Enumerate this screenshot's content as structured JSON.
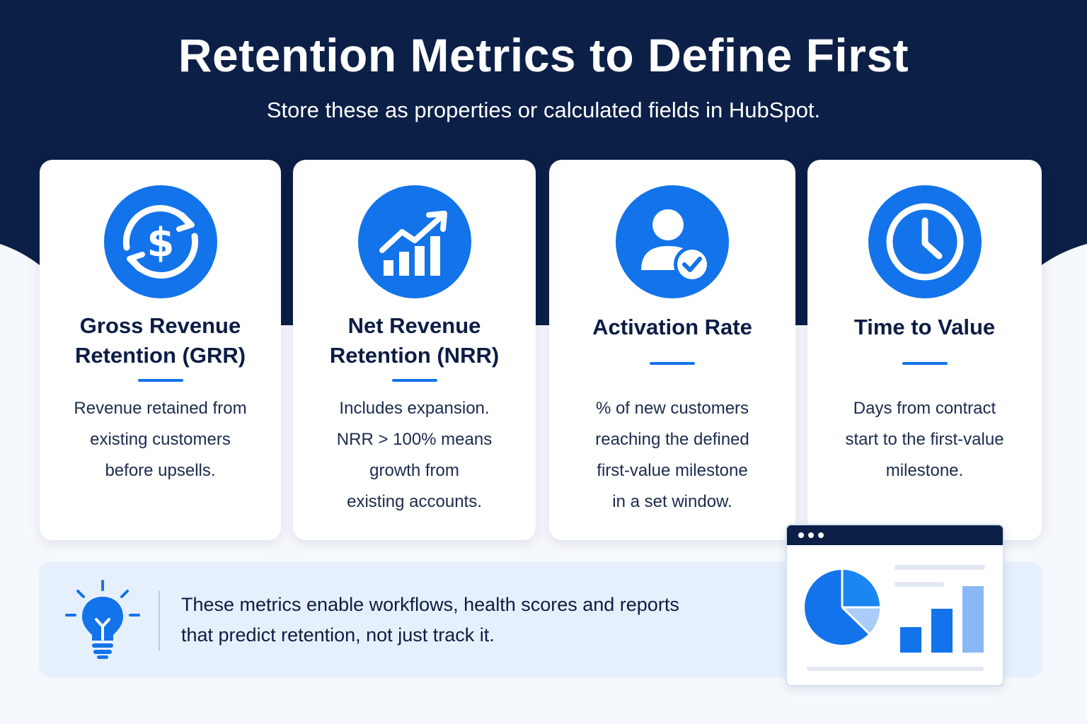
{
  "header": {
    "title": "Retention Metrics to Define First",
    "subtitle": "Store these as properties or calculated fields in HubSpot."
  },
  "colors": {
    "navy": "#0c1f47",
    "accent_blue": "#1273ea",
    "light_blue": "#89b9f5",
    "tip_background": "#e6f0fc"
  },
  "cards": [
    {
      "icon": "dollar-cycle-icon",
      "title_lines": [
        "Gross Revenue",
        "Retention (GRR)"
      ],
      "desc_lines": [
        "Revenue retained from",
        "existing customers",
        "before upsells."
      ]
    },
    {
      "icon": "growth-chart-icon",
      "title_lines": [
        "Net Revenue",
        "Retention (NRR)"
      ],
      "desc_lines": [
        "Includes expansion.",
        "NRR > 100% means",
        "growth from",
        "existing accounts."
      ]
    },
    {
      "icon": "user-check-icon",
      "title_lines": [
        "Activation Rate"
      ],
      "desc_lines": [
        "% of new customers",
        "reaching the defined",
        "first-value milestone",
        "in a set window."
      ]
    },
    {
      "icon": "clock-icon",
      "title_lines": [
        "Time to Value"
      ],
      "desc_lines": [
        "Days from contract",
        "start to the first-value",
        "milestone."
      ]
    }
  ],
  "tip": {
    "icon": "lightbulb-icon",
    "lines": [
      "These metrics enable workflows, health scores and reports",
      "that predict retention, not just track it."
    ]
  },
  "dashboard": {
    "icon": "dashboard-window-icon"
  }
}
